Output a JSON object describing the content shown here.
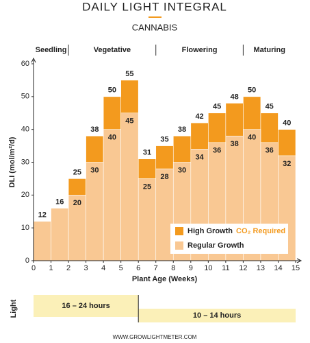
{
  "chart_data": {
    "type": "step-bar",
    "title": "DAILY LIGHT INTEGRAL",
    "subtitle": "CANNABIS",
    "x_label": "Plant Age (Weeks)",
    "y_label": "DLI (mol/m²/d)",
    "xlim": [
      0,
      15
    ],
    "xticks": [
      0,
      1,
      2,
      3,
      4,
      5,
      6,
      7,
      8,
      9,
      10,
      11,
      12,
      13,
      14,
      15
    ],
    "ylim": [
      0,
      60
    ],
    "yticks": [
      0,
      10,
      20,
      30,
      40,
      50,
      60
    ],
    "grid": false,
    "x": [
      0,
      1,
      2,
      3,
      4,
      5,
      6,
      7,
      8,
      9,
      10,
      11,
      12,
      13,
      14
    ],
    "series": [
      {
        "name": "High Growth",
        "color": "#f39a1e",
        "values": [
          null,
          null,
          25,
          38,
          50,
          55,
          31,
          35,
          38,
          42,
          45,
          48,
          50,
          45,
          40
        ]
      },
      {
        "name": "Regular Growth",
        "color": "#f9c893",
        "values": [
          12,
          16,
          20,
          30,
          40,
          45,
          25,
          28,
          30,
          34,
          36,
          38,
          40,
          36,
          32
        ]
      }
    ],
    "legend_note": "CO₂ Required",
    "legend_position": "lower right",
    "stages": [
      {
        "label": "Seedling",
        "start": 0,
        "end": 2
      },
      {
        "label": "Vegetative",
        "start": 2,
        "end": 7
      },
      {
        "label": "Flowering",
        "start": 7,
        "end": 12
      },
      {
        "label": "Maturing",
        "start": 12,
        "end": 15
      }
    ],
    "light": {
      "label": "Light",
      "periods": [
        {
          "label": "16 – 24 hours",
          "start": 0,
          "end": 6
        },
        {
          "label": "10 – 14 hours",
          "start": 6,
          "end": 15
        }
      ]
    },
    "footer": "WWW.GROWLIGHTMETER.COM"
  }
}
